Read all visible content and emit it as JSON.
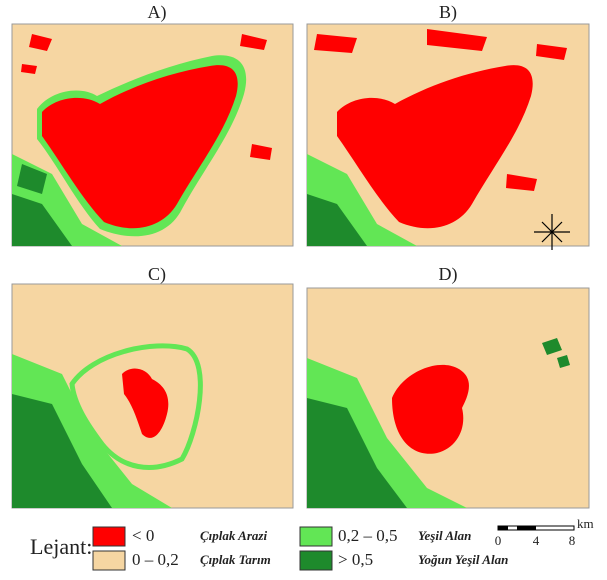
{
  "panels": [
    {
      "label": "A)"
    },
    {
      "label": "B)"
    },
    {
      "label": "C)"
    },
    {
      "label": "D)"
    }
  ],
  "legend": {
    "title": "Lejant:",
    "items": [
      {
        "range": "< 0",
        "name": "Çıplak Arazi",
        "color": "#ff0000"
      },
      {
        "range": "0 – 0,2",
        "name": "Çıplak Tarım",
        "color": "#f6d6a2"
      },
      {
        "range": "0,2 – 0,5",
        "name": "Yeşil Alan",
        "color": "#62e655"
      },
      {
        "range": "> 0,5",
        "name": "Yoğun Yeşil Alan",
        "color": "#1e8a2c"
      }
    ]
  },
  "scale": {
    "ticks": [
      0,
      4,
      8
    ],
    "unit": "km"
  }
}
